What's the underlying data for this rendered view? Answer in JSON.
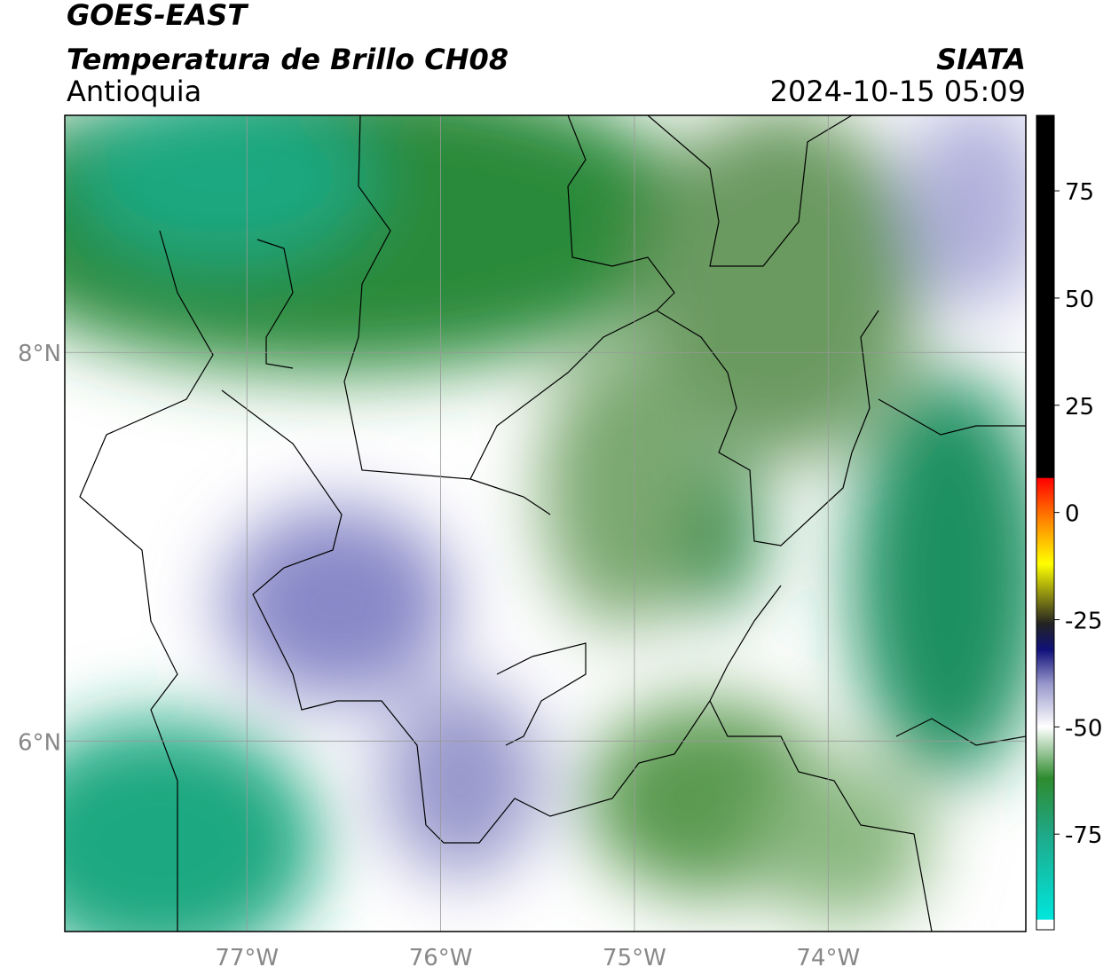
{
  "header": {
    "title": "GOES-EAST",
    "subtitle": "Temperatura de Brillo CH08",
    "region": "Antioquia",
    "source": "SIATA",
    "timestamp": "2024-10-15 05:09"
  },
  "map": {
    "xlim": [
      -77.94,
      -72.98
    ],
    "ylim": [
      5.02,
      9.22
    ],
    "grid": true,
    "xticks": [
      {
        "value": -77,
        "label": "77°W"
      },
      {
        "value": -76,
        "label": "76°W"
      },
      {
        "value": -75,
        "label": "75°W"
      },
      {
        "value": -74,
        "label": "74°W"
      }
    ],
    "yticks": [
      {
        "value": 6,
        "label": "6°N"
      },
      {
        "value": 8,
        "label": "8°N"
      }
    ]
  },
  "colorbar": {
    "lim": [
      -97.3,
      92.6
    ],
    "ticks": [
      -75,
      -50,
      -25,
      0,
      25,
      50,
      75
    ],
    "stops": [
      {
        "value": -97.3,
        "color": "#ffffff"
      },
      {
        "value": -95,
        "color": "#ffffff"
      },
      {
        "value": -94.9,
        "color": "#00e6dc"
      },
      {
        "value": -75,
        "color": "#1fa888"
      },
      {
        "value": -62,
        "color": "#2e8b2e"
      },
      {
        "value": -50,
        "color": "#ffffff"
      },
      {
        "value": -40,
        "color": "#9898cc"
      },
      {
        "value": -32,
        "color": "#10107a"
      },
      {
        "value": -26,
        "color": "#222222"
      },
      {
        "value": -12,
        "color": "#ffff00"
      },
      {
        "value": -2,
        "color": "#ff8800"
      },
      {
        "value": 8,
        "color": "#ff0000"
      },
      {
        "value": 8.1,
        "color": "#000000"
      },
      {
        "value": 92.6,
        "color": "#000000"
      }
    ]
  }
}
